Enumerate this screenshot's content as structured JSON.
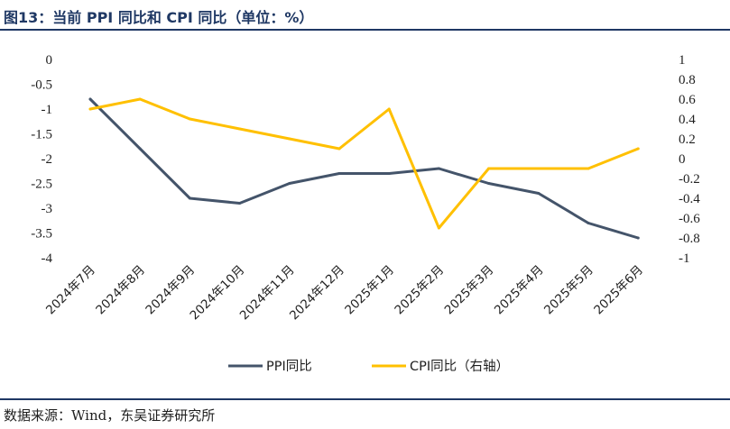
{
  "header": {
    "title": "图13：当前 PPI 同比和 CPI 同比（单位：%）"
  },
  "footer": {
    "source": "数据来源：Wind，东吴证券研究所"
  },
  "colors": {
    "ppi": "#44546a",
    "cpi": "#ffc000",
    "title": "#1f3864"
  },
  "chart_data": {
    "type": "line",
    "categories": [
      "2024年7月",
      "2024年8月",
      "2024年9月",
      "2024年10月",
      "2024年11月",
      "2024年12月",
      "2025年1月",
      "2025年2月",
      "2025年3月",
      "2025年4月",
      "2025年5月",
      "2025年6月"
    ],
    "series": [
      {
        "name": "PPI同比",
        "axis": "left",
        "values": [
          -0.8,
          -1.8,
          -2.8,
          -2.9,
          -2.5,
          -2.3,
          -2.3,
          -2.2,
          -2.5,
          -2.7,
          -3.3,
          -3.6
        ]
      },
      {
        "name": "CPI同比（右轴）",
        "axis": "right",
        "values": [
          0.5,
          0.6,
          0.4,
          0.3,
          0.2,
          0.1,
          0.5,
          -0.7,
          -0.1,
          -0.1,
          -0.1,
          0.1
        ]
      }
    ],
    "left_axis": {
      "ylim": [
        -4,
        0
      ],
      "ticks": [
        "0",
        "-0.5",
        "-1",
        "-1.5",
        "-2",
        "-2.5",
        "-3",
        "-3.5",
        "-4"
      ]
    },
    "right_axis": {
      "ylim": [
        -1,
        1
      ],
      "ticks": [
        "1",
        "0.8",
        "0.6",
        "0.4",
        "0.2",
        "0",
        "-0.2",
        "-0.4",
        "-0.6",
        "-0.8",
        "-1"
      ]
    },
    "grid": false,
    "legend_position": "bottom-center"
  }
}
